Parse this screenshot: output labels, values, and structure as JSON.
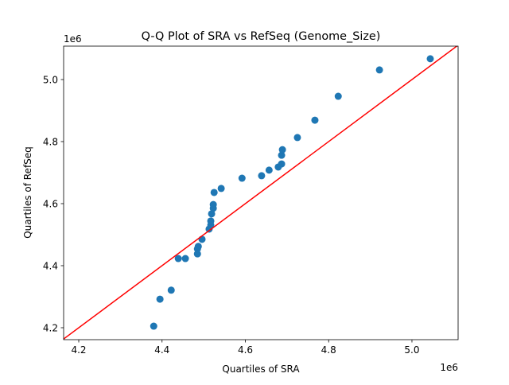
{
  "chart_data": {
    "type": "scatter",
    "title": "Q-Q Plot of SRA vs RefSeq (Genome_Size)",
    "xlabel": "Quartiles of SRA",
    "ylabel": "Quartiles of RefSeq",
    "x_offset_label": "1e6",
    "y_offset_label": "1e6",
    "xlim": [
      4.1637,
      5.1108
    ],
    "ylim": [
      4.1615,
      5.1077
    ],
    "xticks": [
      "4.2",
      "4.4",
      "4.6",
      "4.8",
      "5.0"
    ],
    "yticks": [
      "4.2",
      "4.4",
      "4.6",
      "4.8",
      "5.0"
    ],
    "grid": false,
    "point_color": "#1f77b4",
    "reference_line": {
      "type": "y=x",
      "color": "#ff0000"
    },
    "points": [
      [
        4.38,
        4.205
      ],
      [
        4.395,
        4.292
      ],
      [
        4.422,
        4.321
      ],
      [
        4.439,
        4.423
      ],
      [
        4.456,
        4.423
      ],
      [
        4.485,
        4.438
      ],
      [
        4.485,
        4.454
      ],
      [
        4.487,
        4.462
      ],
      [
        4.496,
        4.485
      ],
      [
        4.513,
        4.518
      ],
      [
        4.517,
        4.531
      ],
      [
        4.517,
        4.544
      ],
      [
        4.519,
        4.567
      ],
      [
        4.523,
        4.585
      ],
      [
        4.523,
        4.597
      ],
      [
        4.525,
        4.636
      ],
      [
        4.542,
        4.649
      ],
      [
        4.592,
        4.682
      ],
      [
        4.639,
        4.69
      ],
      [
        4.657,
        4.708
      ],
      [
        4.679,
        4.718
      ],
      [
        4.687,
        4.728
      ],
      [
        4.687,
        4.756
      ],
      [
        4.689,
        4.774
      ],
      [
        4.725,
        4.813
      ],
      [
        4.767,
        4.869
      ],
      [
        4.823,
        4.946
      ],
      [
        4.922,
        5.031
      ],
      [
        5.044,
        5.067
      ]
    ]
  }
}
